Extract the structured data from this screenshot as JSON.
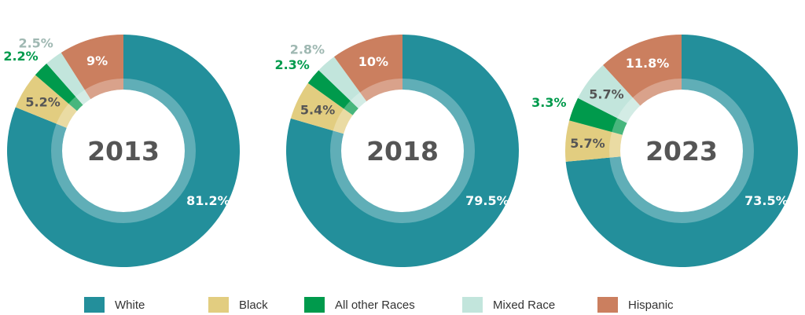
{
  "colors": {
    "White": "#238f9b",
    "Black": "#e2cd80",
    "All other Races": "#009a4c",
    "Mixed Race": "#c2e5dc",
    "Hispanic": "#cb7f5f"
  },
  "chart_data": {
    "type": "pie",
    "categories": [
      "White",
      "Black",
      "All other Races",
      "Mixed Race",
      "Hispanic"
    ],
    "charts": [
      {
        "title": "2013",
        "values": [
          81.2,
          5.2,
          2.2,
          2.5,
          9
        ],
        "labels": [
          "81.2%",
          "5.2%",
          "2.2%",
          "2.5%",
          "9%"
        ]
      },
      {
        "title": "2018",
        "values": [
          79.5,
          5.4,
          2.3,
          2.8,
          10
        ],
        "labels": [
          "79.5%",
          "5.4%",
          "2.3%",
          "2.8%",
          "10%"
        ]
      },
      {
        "title": "2023",
        "values": [
          73.5,
          5.7,
          3.3,
          5.7,
          11.8
        ],
        "labels": [
          "73.5%",
          "5.7%",
          "3.3%",
          "5.7%",
          "11.8%"
        ]
      }
    ],
    "legend": [
      "White",
      "Black",
      "All other Races",
      "Mixed Race",
      "Hispanic"
    ],
    "legend_position": "bottom"
  }
}
